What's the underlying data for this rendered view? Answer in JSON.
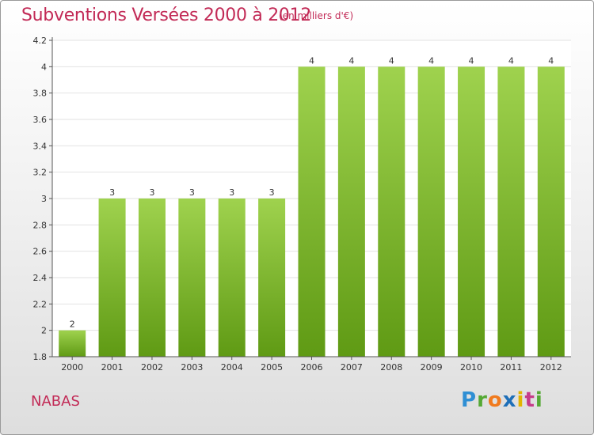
{
  "header": {
    "title": "Subventions Versées 2000 à 2012",
    "subtitle": "(en milliers d'€)"
  },
  "footer": {
    "commune": "NABAS",
    "logo_text": "Proxiti"
  },
  "colors": {
    "title": "#c22a56",
    "bar_top": "#9fd24e",
    "bar_bottom": "#5f9a14"
  },
  "chart_data": {
    "type": "bar",
    "title": "Subventions Versées 2000 à 2012",
    "subtitle": "(en milliers d'€)",
    "xlabel": "",
    "ylabel": "",
    "categories": [
      "2000",
      "2001",
      "2002",
      "2003",
      "2004",
      "2005",
      "2006",
      "2007",
      "2008",
      "2009",
      "2010",
      "2011",
      "2012"
    ],
    "values": [
      2,
      3,
      3,
      3,
      3,
      3,
      4,
      4,
      4,
      4,
      4,
      4,
      4
    ],
    "value_labels": [
      "2",
      "3",
      "3",
      "3",
      "3",
      "3",
      "4",
      "4",
      "4",
      "4",
      "4",
      "4",
      "4"
    ],
    "ylim": [
      1.8,
      4.2
    ],
    "yticks": [
      1.8,
      2,
      2.2,
      2.4,
      2.6,
      2.8,
      3,
      3.2,
      3.4,
      3.6,
      3.8,
      4,
      4.2
    ],
    "ytick_labels": [
      "1.8",
      "2",
      "2.2",
      "2.4",
      "2.6",
      "2.8",
      "3",
      "3.2",
      "3.4",
      "3.6",
      "3.8",
      "4",
      "4.2"
    ],
    "grid": true,
    "legend": "none"
  }
}
